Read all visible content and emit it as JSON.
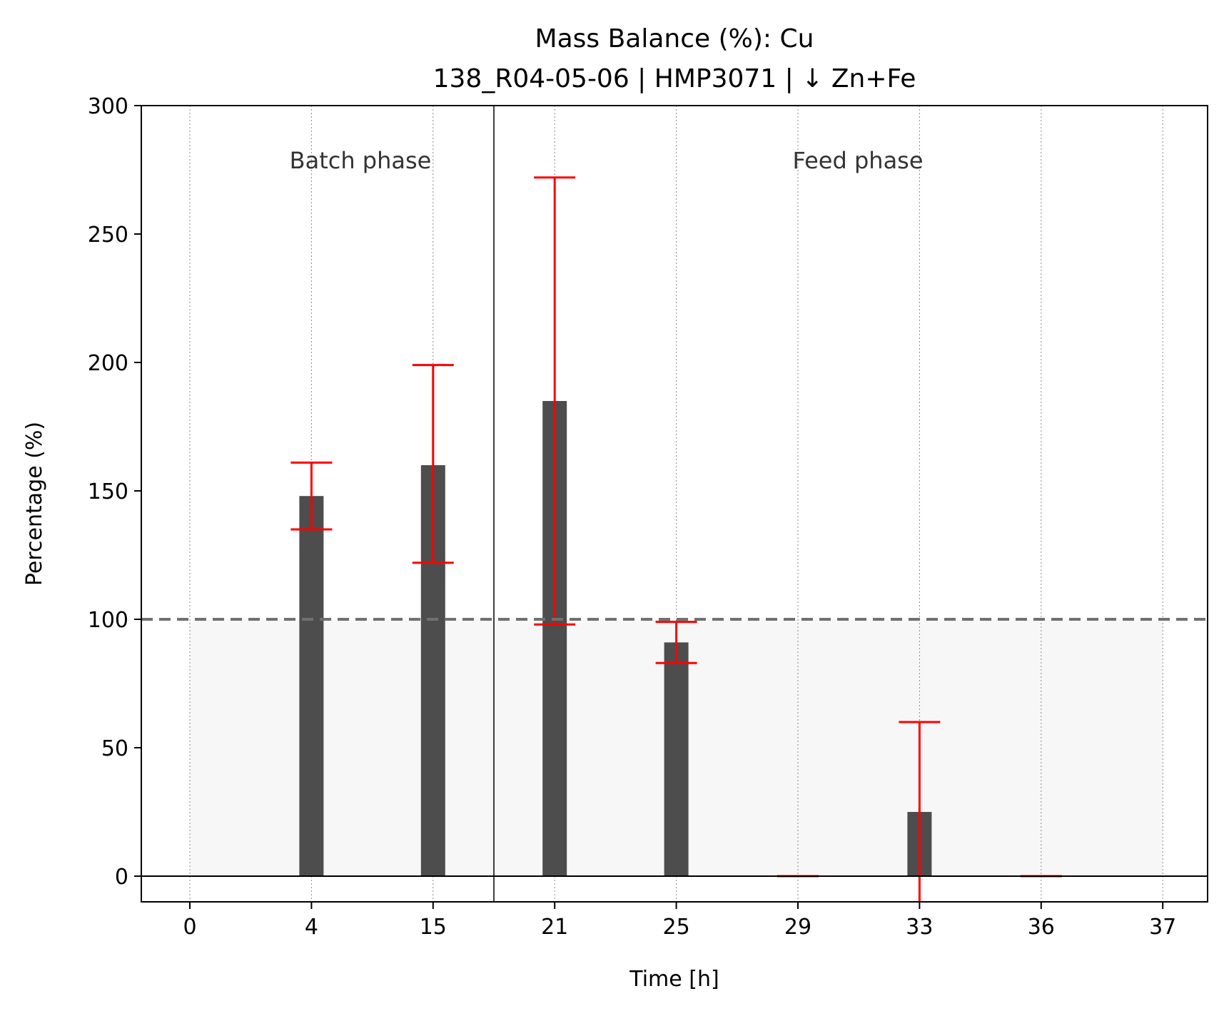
{
  "chart_data": {
    "type": "bar",
    "title": "Mass Balance (%): Cu",
    "subtitle": "138_R04-05-06 | HMP3071 | ↓ Zn+Fe",
    "xlabel": "Time [h]",
    "ylabel": "Percentage (%)",
    "ylim": [
      -10,
      300
    ],
    "yticks": [
      0,
      50,
      100,
      150,
      200,
      250,
      300
    ],
    "categories": [
      "0",
      "4",
      "15",
      "21",
      "25",
      "29",
      "33",
      "36",
      "37"
    ],
    "values": [
      null,
      148,
      160,
      185,
      91,
      0,
      25,
      0,
      null
    ],
    "errors": [
      null,
      {
        "low": 135,
        "high": 161
      },
      {
        "low": 122,
        "high": 199
      },
      {
        "low": 98,
        "high": 272
      },
      {
        "low": 83,
        "high": 99
      },
      {
        "low": 0,
        "high": 0
      },
      {
        "low": -10,
        "high": 60
      },
      {
        "low": 0,
        "high": 0
      },
      null
    ],
    "reference_line": 100,
    "phase_split_after_category": 2,
    "annotations": [
      {
        "text": "Batch phase",
        "phase": "batch"
      },
      {
        "text": "Feed phase",
        "phase": "feed"
      }
    ],
    "grid": "vertical-dotted",
    "colors": {
      "bar": "#4d4d4d",
      "error": "#ff0000",
      "reference": "#707070",
      "shade": "#f7f7f7"
    }
  }
}
